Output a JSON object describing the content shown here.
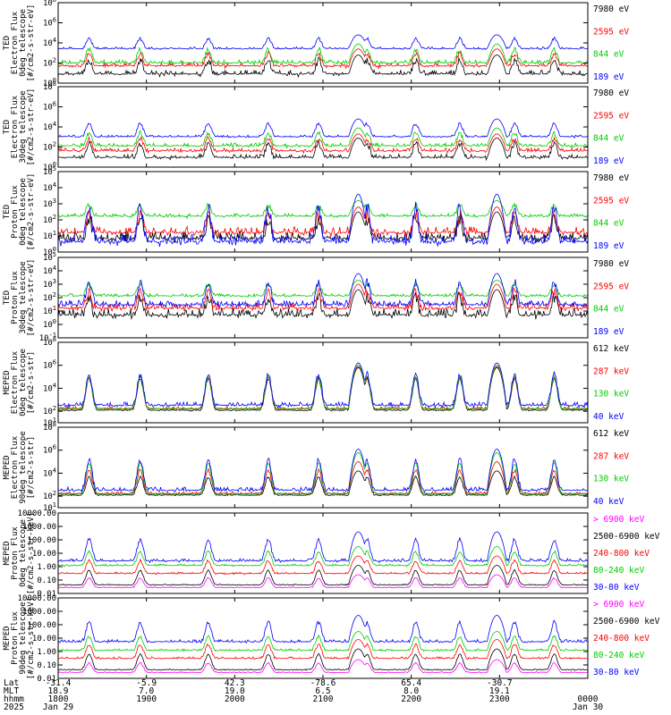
{
  "chart_data": {
    "type": "line",
    "panels": [
      {
        "id": "ted-electron-0",
        "ylabel": [
          "TED",
          "Electron Flux",
          "0deg telescope",
          "[#/cm2-s-str-eV]"
        ],
        "ylog": true,
        "ylim_exp": [
          0,
          8
        ],
        "yticks": [
          {
            "e": 0,
            "t": "10^0"
          },
          {
            "e": 2,
            "t": "10^2"
          },
          {
            "e": 4,
            "t": "10^4"
          },
          {
            "e": 6,
            "t": "10^6"
          },
          {
            "e": 8,
            "t": "10^8"
          }
        ],
        "series": [
          {
            "name": "7980 eV",
            "color": "#000000",
            "base": 0.6,
            "peak": 2.8,
            "noise": 0.7
          },
          {
            "name": "2595 eV",
            "color": "#ff0000",
            "base": 1.5,
            "peak": 3.4,
            "noise": 0.5
          },
          {
            "name": "844 eV",
            "color": "#00cc00",
            "base": 1.8,
            "peak": 3.9,
            "noise": 0.5
          },
          {
            "name": "189 eV",
            "color": "#0000ff",
            "base": 3.3,
            "peak": 4.8,
            "noise": 0.3
          }
        ]
      },
      {
        "id": "ted-electron-30",
        "ylabel": [
          "TED",
          "Electron Flux",
          "30deg telescope",
          "[#/cm2-s-str-eV]"
        ],
        "ylog": true,
        "ylim_exp": [
          0,
          8
        ],
        "yticks": [
          {
            "e": 0,
            "t": "10^0"
          },
          {
            "e": 2,
            "t": "10^2"
          },
          {
            "e": 4,
            "t": "10^4"
          },
          {
            "e": 6,
            "t": "10^6"
          },
          {
            "e": 8,
            "t": "10^8"
          }
        ],
        "series": [
          {
            "name": "7980 eV",
            "color": "#000000",
            "base": 0.7,
            "peak": 2.9,
            "noise": 0.6
          },
          {
            "name": "2595 eV",
            "color": "#ff0000",
            "base": 1.4,
            "peak": 3.3,
            "noise": 0.5
          },
          {
            "name": "844 eV",
            "color": "#00cc00",
            "base": 1.9,
            "peak": 3.9,
            "noise": 0.5
          },
          {
            "name": "189 eV",
            "color": "#0000ff",
            "base": 2.9,
            "peak": 4.8,
            "noise": 0.3
          }
        ]
      },
      {
        "id": "ted-proton-0",
        "ylabel": [
          "TED",
          "Proton Flux",
          "0deg telescope",
          "[#/cm2-s-str-eV]"
        ],
        "ylog": true,
        "ylim_exp": [
          0,
          5
        ],
        "yticks": [
          {
            "e": 0,
            "t": "10^0"
          },
          {
            "e": 1,
            "t": "10^1"
          },
          {
            "e": 2,
            "t": "10^2"
          },
          {
            "e": 3,
            "t": "10^3"
          },
          {
            "e": 4,
            "t": "10^4"
          },
          {
            "e": 5,
            "t": "10^5"
          }
        ],
        "series": [
          {
            "name": "7980 eV",
            "color": "#000000",
            "base": 0.5,
            "peak": 2.5,
            "noise": 0.8
          },
          {
            "name": "2595 eV",
            "color": "#ff0000",
            "base": 0.9,
            "peak": 2.8,
            "noise": 0.7
          },
          {
            "name": "844 eV",
            "color": "#00cc00",
            "base": 2.1,
            "peak": 3.2,
            "noise": 0.3
          },
          {
            "name": "189 eV",
            "color": "#0000ff",
            "base": 0.3,
            "peak": 3.6,
            "noise": 0.8
          }
        ]
      },
      {
        "id": "ted-proton-30",
        "ylabel": [
          "TED",
          "Proton Flux",
          "30deg telescope",
          "[#/cm2-s-str-eV]"
        ],
        "ylog": true,
        "ylim_exp": [
          -1,
          5
        ],
        "yticks": [
          {
            "e": -1,
            "t": "10^-1"
          },
          {
            "e": 0,
            "t": "10^0"
          },
          {
            "e": 1,
            "t": "10^1"
          },
          {
            "e": 2,
            "t": "10^2"
          },
          {
            "e": 3,
            "t": "10^3"
          },
          {
            "e": 4,
            "t": "10^4"
          },
          {
            "e": 5,
            "t": "10^5"
          }
        ],
        "series": [
          {
            "name": "7980 eV",
            "color": "#000000",
            "base": 0.3,
            "peak": 2.6,
            "noise": 0.9
          },
          {
            "name": "2595 eV",
            "color": "#ff0000",
            "base": 0.9,
            "peak": 3.0,
            "noise": 0.7
          },
          {
            "name": "844 eV",
            "color": "#00cc00",
            "base": 2.0,
            "peak": 3.3,
            "noise": 0.3
          },
          {
            "name": "189 eV",
            "color": "#0000ff",
            "base": 1.2,
            "peak": 3.8,
            "noise": 0.6
          }
        ]
      },
      {
        "id": "meped-electron-0",
        "ylabel": [
          "MEPED",
          "Electron Flux",
          "0deg telescope",
          "[#/cm2-s-str]"
        ],
        "ylog": true,
        "ylim_exp": [
          1,
          8
        ],
        "yticks": [
          {
            "e": 1,
            "t": "10^1"
          },
          {
            "e": 2,
            "t": "10^2"
          },
          {
            "e": 4,
            "t": "10^4"
          },
          {
            "e": 6,
            "t": "10^6"
          },
          {
            "e": 8,
            "t": "10^8"
          }
        ],
        "series": [
          {
            "name": "612 keV",
            "color": "#000000",
            "base": 2.0,
            "peak": 5.8,
            "noise": 0.2
          },
          {
            "name": "287 keV",
            "color": "#ff0000",
            "base": 2.1,
            "peak": 5.9,
            "noise": 0.3
          },
          {
            "name": "130 keV",
            "color": "#00cc00",
            "base": 2.1,
            "peak": 6.0,
            "noise": 0.2
          },
          {
            "name": "40 keV",
            "color": "#0000ff",
            "base": 2.3,
            "peak": 6.2,
            "noise": 0.5
          }
        ]
      },
      {
        "id": "meped-electron-90",
        "ylabel": [
          "MEPED",
          "Electron Flux",
          "90deg telescope",
          "[#/cm2-s-str]"
        ],
        "ylog": true,
        "ylim_exp": [
          1,
          8
        ],
        "yticks": [
          {
            "e": 1,
            "t": "10^1"
          },
          {
            "e": 2,
            "t": "10^2"
          },
          {
            "e": 4,
            "t": "10^4"
          },
          {
            "e": 6,
            "t": "10^6"
          },
          {
            "e": 8,
            "t": "10^8"
          }
        ],
        "series": [
          {
            "name": "612 keV",
            "color": "#000000",
            "base": 2.0,
            "peak": 4.2,
            "noise": 0.2
          },
          {
            "name": "287 keV",
            "color": "#ff0000",
            "base": 2.1,
            "peak": 5.0,
            "noise": 0.3
          },
          {
            "name": "130 keV",
            "color": "#00cc00",
            "base": 2.1,
            "peak": 5.8,
            "noise": 0.2
          },
          {
            "name": "40 keV",
            "color": "#0000ff",
            "base": 2.3,
            "peak": 6.1,
            "noise": 0.5
          }
        ]
      },
      {
        "id": "meped-proton-0",
        "ylabel": [
          "MEPED",
          "Proton Flux",
          "0deg telescope",
          "[#/cm2-s-str-keV]"
        ],
        "ylog": true,
        "ylim_exp": [
          -2,
          4
        ],
        "yticks": [
          {
            "e": -2,
            "t": "0.01"
          },
          {
            "e": -1,
            "t": "0.10"
          },
          {
            "e": 0,
            "t": "1.00"
          },
          {
            "e": 1,
            "t": "10.00"
          },
          {
            "e": 2,
            "t": "100.00"
          },
          {
            "e": 3,
            "t": "1000.00"
          },
          {
            "e": 4,
            "t": "10000.00"
          }
        ],
        "series": [
          {
            "name": "> 6900 keV",
            "color": "#ff00ff",
            "base": -1.6,
            "peak": -0.6,
            "noise": 0.1
          },
          {
            "name": "2500-6900 keV",
            "color": "#000000",
            "base": -1.4,
            "peak": 0.1,
            "noise": 0.1
          },
          {
            "name": "240-800 keV",
            "color": "#ff0000",
            "base": -0.6,
            "peak": 0.8,
            "noise": 0.2
          },
          {
            "name": "80-240 keV",
            "color": "#00cc00",
            "base": 0.0,
            "peak": 1.5,
            "noise": 0.2
          },
          {
            "name": "30-80 keV",
            "color": "#0000ff",
            "base": 0.3,
            "peak": 2.6,
            "noise": 0.3
          }
        ]
      },
      {
        "id": "meped-proton-90",
        "ylabel": [
          "MEPED",
          "Proton Flux",
          "90deg telescope",
          "[#/cm2-s-str-keV]"
        ],
        "ylog": true,
        "ylim_exp": [
          -2,
          4
        ],
        "yticks": [
          {
            "e": -2,
            "t": "0.01"
          },
          {
            "e": -1,
            "t": "0.10"
          },
          {
            "e": 0,
            "t": "1.00"
          },
          {
            "e": 1,
            "t": "10.00"
          },
          {
            "e": 2,
            "t": "100.00"
          },
          {
            "e": 3,
            "t": "1000.00"
          },
          {
            "e": 4,
            "t": "10000.00"
          }
        ],
        "series": [
          {
            "name": "> 6900 keV",
            "color": "#ff00ff",
            "base": -1.6,
            "peak": -0.6,
            "noise": 0.1
          },
          {
            "name": "2500-6900 keV",
            "color": "#000000",
            "base": -1.4,
            "peak": 0.2,
            "noise": 0.1
          },
          {
            "name": "240-800 keV",
            "color": "#ff0000",
            "base": -0.6,
            "peak": 0.9,
            "noise": 0.2
          },
          {
            "name": "80-240 keV",
            "color": "#00cc00",
            "base": 0.0,
            "peak": 1.5,
            "noise": 0.2
          },
          {
            "name": "30-80 keV",
            "color": "#0000ff",
            "base": 0.6,
            "peak": 2.7,
            "noise": 0.3
          }
        ]
      }
    ],
    "x_axis": {
      "row_labels": [
        "Lat",
        "MLT",
        "hhmm",
        "2025"
      ],
      "columns": [
        {
          "lat": "-31.4",
          "mlt": "18.9",
          "hhmm": "1800",
          "date": "Jan 29"
        },
        {
          "lat": "-5.9",
          "mlt": "7.0",
          "hhmm": "1900",
          "date": ""
        },
        {
          "lat": "42.3",
          "mlt": "19.0",
          "hhmm": "2000",
          "date": ""
        },
        {
          "lat": "-78.6",
          "mlt": "6.5",
          "hhmm": "2100",
          "date": ""
        },
        {
          "lat": "65.4",
          "mlt": "8.0",
          "hhmm": "2200",
          "date": ""
        },
        {
          "lat": "-30.7",
          "mlt": "19.1",
          "hhmm": "2300",
          "date": ""
        },
        {
          "lat": "",
          "mlt": "",
          "hhmm": "0000",
          "date": "Jan 30"
        }
      ],
      "range_hours": [
        18,
        24
      ]
    }
  }
}
